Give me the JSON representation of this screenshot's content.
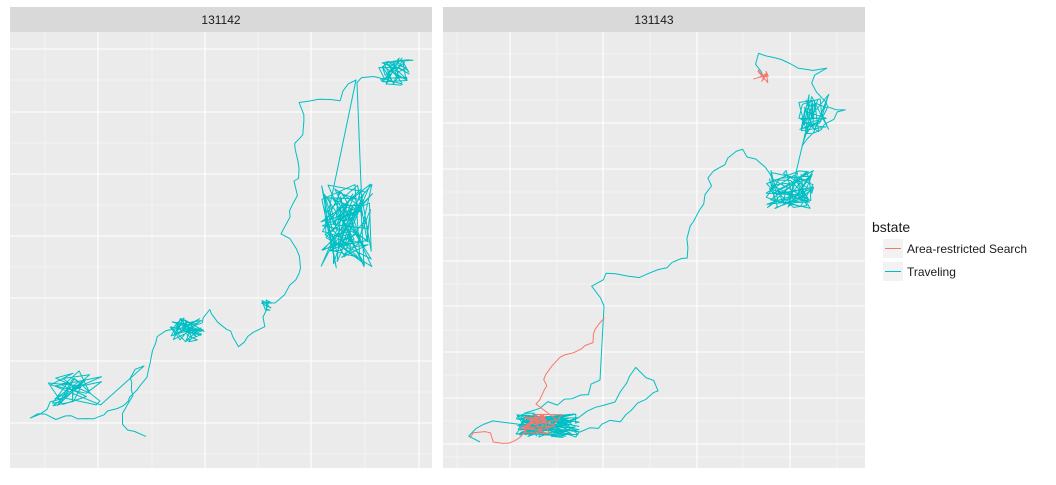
{
  "chart_data": {
    "type": "line",
    "facet_variable": "",
    "panels": [
      {
        "strip_label": "131142"
      },
      {
        "strip_label": "131143"
      }
    ],
    "legend": {
      "title": "bstate",
      "placement": "right",
      "entries": [
        {
          "label": "Area-restricted Search",
          "color": "#F8766D"
        },
        {
          "label": "Traveling",
          "color": "#00BFC4"
        }
      ]
    },
    "grid": true,
    "axis_tick_labels_visible": false,
    "colors": {
      "panel_bg": "#EBEBEB",
      "strip_bg": "#D9D9D9",
      "grid": "#FFFFFF",
      "ars": "#F8766D",
      "traveling": "#00BFC4"
    }
  }
}
